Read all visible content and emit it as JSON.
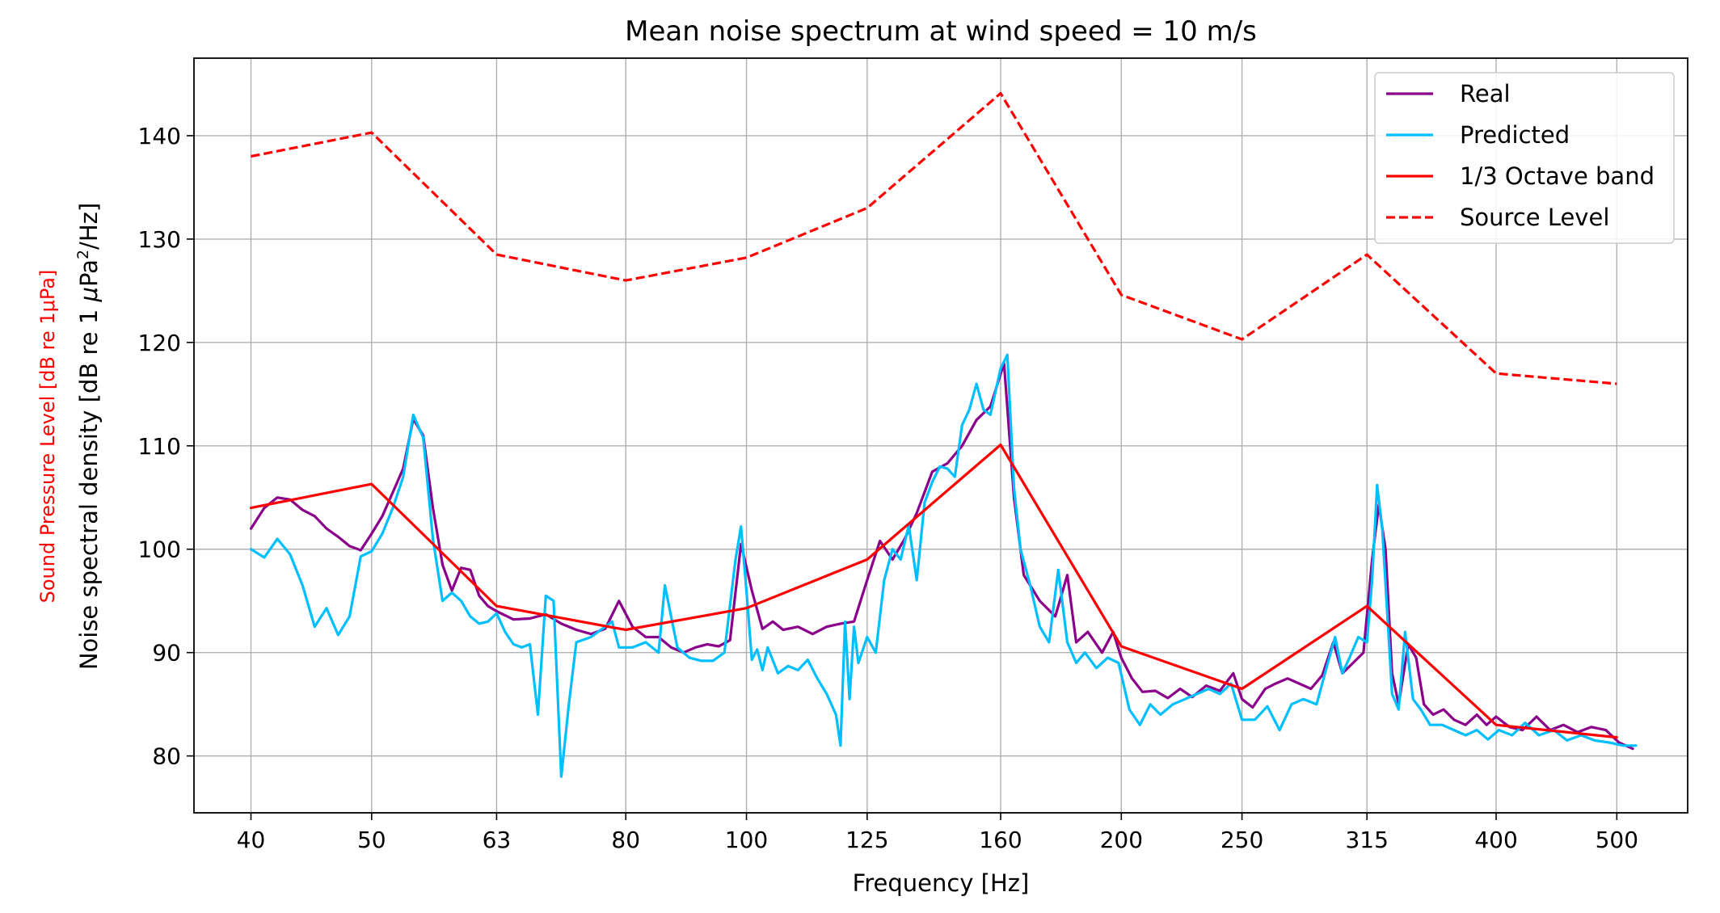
{
  "chart_data": {
    "type": "line",
    "title": "Mean noise spectrum at wind speed = 10 m/s",
    "xlabel": "Frequency [Hz]",
    "ylabel_secondary": "Sound Pressure Level [dB re 1μPa]",
    "ylabel_main_prefix": "Noise spectral density [dB re 1 ",
    "ylabel_main_mu": "μ",
    "ylabel_main_pa": "Pa",
    "ylabel_main_sup": "2",
    "ylabel_main_suffix": "/Hz]",
    "x_scale": "log",
    "xlim": [
      36.0,
      570.0
    ],
    "ylim": [
      74.5,
      147.5
    ],
    "xticks": [
      40,
      50,
      63,
      80,
      100,
      125,
      160,
      200,
      250,
      315,
      400,
      500
    ],
    "xtick_labels": [
      "40",
      "50",
      "63",
      "80",
      "100",
      "125",
      "160",
      "200",
      "250",
      "315",
      "400",
      "500"
    ],
    "yticks": [
      80,
      90,
      100,
      110,
      120,
      130,
      140
    ],
    "ytick_labels": [
      "80",
      "90",
      "100",
      "110",
      "120",
      "130",
      "140"
    ],
    "grid": true,
    "legend_position": "top-right",
    "colors": {
      "real": "#8b008b",
      "predicted": "#00bfff",
      "octave": "#ff0000",
      "source": "#ff0000",
      "secondary_label": "#ff0000"
    },
    "series": [
      {
        "name": "Real",
        "style": "solid",
        "points": [
          [
            40,
            102
          ],
          [
            41,
            104
          ],
          [
            42,
            105
          ],
          [
            43,
            104.8
          ],
          [
            44,
            103.8
          ],
          [
            45,
            103.2
          ],
          [
            46,
            102
          ],
          [
            47,
            101.2
          ],
          [
            48,
            100.3
          ],
          [
            49,
            99.9
          ],
          [
            50,
            101.5
          ],
          [
            51,
            103.2
          ],
          [
            52,
            105.5
          ],
          [
            53,
            107.8
          ],
          [
            54,
            112.6
          ],
          [
            55,
            111
          ],
          [
            56,
            104
          ],
          [
            57,
            98.5
          ],
          [
            58,
            96
          ],
          [
            59,
            98.2
          ],
          [
            60,
            98
          ],
          [
            61,
            95.5
          ],
          [
            62,
            94.5
          ],
          [
            63,
            94
          ],
          [
            65,
            93.2
          ],
          [
            67,
            93.3
          ],
          [
            69,
            93.7
          ],
          [
            71,
            92.8
          ],
          [
            73,
            92.2
          ],
          [
            75,
            91.8
          ],
          [
            77,
            92.3
          ],
          [
            79,
            95
          ],
          [
            81,
            92.5
          ],
          [
            83,
            91.5
          ],
          [
            85,
            91.5
          ],
          [
            87,
            90.5
          ],
          [
            89,
            90
          ],
          [
            91,
            90.5
          ],
          [
            93,
            90.8
          ],
          [
            95,
            90.6
          ],
          [
            97,
            91.2
          ],
          [
            99,
            100.5
          ],
          [
            101,
            96
          ],
          [
            103,
            92.3
          ],
          [
            105,
            93
          ],
          [
            107,
            92.2
          ],
          [
            110,
            92.5
          ],
          [
            113,
            91.8
          ],
          [
            116,
            92.5
          ],
          [
            119,
            92.8
          ],
          [
            122,
            93
          ],
          [
            125,
            97
          ],
          [
            128,
            100.8
          ],
          [
            131,
            99
          ],
          [
            134,
            101
          ],
          [
            137,
            103.5
          ],
          [
            141,
            107.5
          ],
          [
            145,
            108.3
          ],
          [
            149,
            110
          ],
          [
            153,
            112.5
          ],
          [
            157,
            113.8
          ],
          [
            161,
            118
          ],
          [
            164,
            105
          ],
          [
            167,
            97.5
          ],
          [
            172,
            95
          ],
          [
            177,
            93.5
          ],
          [
            181,
            97.5
          ],
          [
            184,
            91
          ],
          [
            188,
            92
          ],
          [
            193,
            90
          ],
          [
            197,
            92
          ],
          [
            200,
            89.5
          ],
          [
            204,
            87.5
          ],
          [
            208,
            86.2
          ],
          [
            213,
            86.3
          ],
          [
            218,
            85.6
          ],
          [
            223,
            86.5
          ],
          [
            228,
            85.7
          ],
          [
            234,
            86.8
          ],
          [
            240,
            86.3
          ],
          [
            246,
            88
          ],
          [
            250,
            85.5
          ],
          [
            255,
            84.7
          ],
          [
            261,
            86.5
          ],
          [
            266,
            87
          ],
          [
            272,
            87.5
          ],
          [
            278,
            87
          ],
          [
            284,
            86.5
          ],
          [
            290,
            87.8
          ],
          [
            296,
            91
          ],
          [
            301,
            88
          ],
          [
            307,
            89
          ],
          [
            313,
            90
          ],
          [
            318,
            99
          ],
          [
            322,
            104.3
          ],
          [
            326,
            100
          ],
          [
            330,
            88
          ],
          [
            334,
            85
          ],
          [
            340,
            90.8
          ],
          [
            345,
            89.5
          ],
          [
            350,
            85
          ],
          [
            356,
            84
          ],
          [
            363,
            84.5
          ],
          [
            370,
            83.5
          ],
          [
            378,
            83
          ],
          [
            386,
            84
          ],
          [
            393,
            83
          ],
          [
            400,
            83.8
          ],
          [
            410,
            82.8
          ],
          [
            420,
            82.5
          ],
          [
            431,
            83.8
          ],
          [
            442,
            82.5
          ],
          [
            453,
            83
          ],
          [
            465,
            82.3
          ],
          [
            477,
            82.8
          ],
          [
            490,
            82.5
          ],
          [
            502,
            81.3
          ],
          [
            515,
            80.7
          ]
        ]
      },
      {
        "name": "Predicted",
        "style": "solid",
        "points": [
          [
            40,
            100
          ],
          [
            41,
            99.2
          ],
          [
            42,
            101
          ],
          [
            43,
            99.5
          ],
          [
            44,
            96.5
          ],
          [
            45,
            92.5
          ],
          [
            46,
            94.3
          ],
          [
            47,
            91.7
          ],
          [
            48,
            93.5
          ],
          [
            49,
            99.3
          ],
          [
            50,
            99.8
          ],
          [
            51,
            101.5
          ],
          [
            52,
            104
          ],
          [
            53,
            107
          ],
          [
            54,
            113
          ],
          [
            55,
            110.8
          ],
          [
            56,
            101
          ],
          [
            57,
            95
          ],
          [
            58,
            95.8
          ],
          [
            59,
            95
          ],
          [
            60,
            93.5
          ],
          [
            61,
            92.8
          ],
          [
            62,
            93
          ],
          [
            63,
            93.8
          ],
          [
            64,
            92
          ],
          [
            65,
            90.8
          ],
          [
            66,
            90.5
          ],
          [
            67,
            90.8
          ],
          [
            68,
            84
          ],
          [
            69,
            95.5
          ],
          [
            70,
            95
          ],
          [
            71,
            78
          ],
          [
            72,
            85
          ],
          [
            73,
            91
          ],
          [
            75,
            91.5
          ],
          [
            77,
            92.5
          ],
          [
            78,
            93
          ],
          [
            79,
            90.5
          ],
          [
            81,
            90.5
          ],
          [
            83,
            91
          ],
          [
            85,
            90
          ],
          [
            86,
            96.5
          ],
          [
            88,
            90.5
          ],
          [
            90,
            89.5
          ],
          [
            92,
            89.2
          ],
          [
            94,
            89.2
          ],
          [
            96,
            90
          ],
          [
            98,
            99
          ],
          [
            99,
            102.2
          ],
          [
            100,
            96
          ],
          [
            101,
            89.3
          ],
          [
            102,
            90.3
          ],
          [
            103,
            88.3
          ],
          [
            104,
            90.5
          ],
          [
            106,
            88
          ],
          [
            108,
            88.7
          ],
          [
            110,
            88.3
          ],
          [
            112,
            89.3
          ],
          [
            114,
            87.5
          ],
          [
            116,
            86
          ],
          [
            118,
            84
          ],
          [
            119,
            81
          ],
          [
            120,
            93
          ],
          [
            121,
            85.5
          ],
          [
            122,
            92.5
          ],
          [
            123,
            89
          ],
          [
            125,
            91.5
          ],
          [
            127,
            90
          ],
          [
            129,
            97
          ],
          [
            131,
            100
          ],
          [
            133,
            99
          ],
          [
            135,
            102.3
          ],
          [
            137,
            97
          ],
          [
            139,
            104.5
          ],
          [
            141,
            106.5
          ],
          [
            143,
            108
          ],
          [
            145,
            107.8
          ],
          [
            147,
            107
          ],
          [
            149,
            112
          ],
          [
            151,
            113.5
          ],
          [
            153,
            116
          ],
          [
            155,
            113.5
          ],
          [
            157,
            113
          ],
          [
            160,
            117.5
          ],
          [
            162,
            118.8
          ],
          [
            164,
            106
          ],
          [
            166,
            100
          ],
          [
            169,
            96.5
          ],
          [
            172,
            92.5
          ],
          [
            175,
            91
          ],
          [
            178,
            98
          ],
          [
            181,
            91
          ],
          [
            184,
            89
          ],
          [
            187,
            90
          ],
          [
            191,
            88.5
          ],
          [
            195,
            89.5
          ],
          [
            199,
            89
          ],
          [
            203,
            84.5
          ],
          [
            207,
            83
          ],
          [
            211,
            85
          ],
          [
            215,
            84
          ],
          [
            220,
            85
          ],
          [
            225,
            85.5
          ],
          [
            230,
            86
          ],
          [
            235,
            86.5
          ],
          [
            240,
            86
          ],
          [
            245,
            87
          ],
          [
            250,
            83.5
          ],
          [
            256,
            83.5
          ],
          [
            262,
            84.8
          ],
          [
            268,
            82.5
          ],
          [
            274,
            85
          ],
          [
            280,
            85.5
          ],
          [
            287,
            85
          ],
          [
            293,
            89
          ],
          [
            297,
            91.5
          ],
          [
            301,
            88
          ],
          [
            305,
            89.5
          ],
          [
            310,
            91.5
          ],
          [
            315,
            91
          ],
          [
            318,
            97
          ],
          [
            321,
            106.2
          ],
          [
            324,
            102
          ],
          [
            327,
            94
          ],
          [
            330,
            86
          ],
          [
            334,
            84.5
          ],
          [
            338,
            92
          ],
          [
            343,
            85.5
          ],
          [
            348,
            84.5
          ],
          [
            354,
            83
          ],
          [
            362,
            83
          ],
          [
            370,
            82.5
          ],
          [
            378,
            82
          ],
          [
            386,
            82.5
          ],
          [
            394,
            81.6
          ],
          [
            402,
            82.5
          ],
          [
            412,
            82
          ],
          [
            422,
            83.2
          ],
          [
            433,
            82
          ],
          [
            445,
            82.5
          ],
          [
            456,
            81.5
          ],
          [
            468,
            82
          ],
          [
            480,
            81.5
          ],
          [
            493,
            81.3
          ],
          [
            506,
            81
          ],
          [
            518,
            81
          ]
        ]
      },
      {
        "name": "1/3 Octave band",
        "style": "solid",
        "points": [
          [
            40,
            104
          ],
          [
            50,
            106.3
          ],
          [
            63,
            94.5
          ],
          [
            80,
            92.2
          ],
          [
            100,
            94.3
          ],
          [
            125,
            99
          ],
          [
            160,
            110.1
          ],
          [
            200,
            90.6
          ],
          [
            250,
            86.5
          ],
          [
            315,
            94.5
          ],
          [
            400,
            83
          ],
          [
            500,
            81.8
          ]
        ]
      },
      {
        "name": "Source Level",
        "style": "dashed",
        "points": [
          [
            40,
            138
          ],
          [
            50,
            140.3
          ],
          [
            63,
            128.5
          ],
          [
            80,
            126
          ],
          [
            100,
            128.2
          ],
          [
            125,
            133
          ],
          [
            160,
            144.1
          ],
          [
            200,
            124.6
          ],
          [
            250,
            120.3
          ],
          [
            315,
            128.5
          ],
          [
            400,
            117
          ],
          [
            500,
            116
          ]
        ]
      }
    ]
  }
}
